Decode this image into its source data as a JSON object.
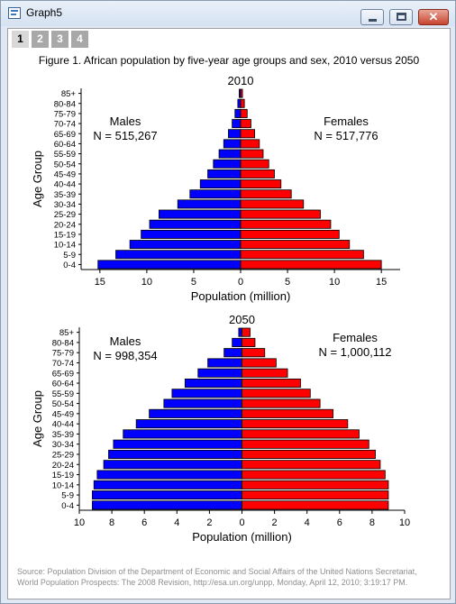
{
  "window": {
    "title": "Graph5"
  },
  "tabs": [
    "1",
    "2",
    "3",
    "4"
  ],
  "figure_title": "Figure 1. African population by five-year age groups and sex, 2010 versus 2050",
  "source_lines": [
    "Source: Population Division of the Department of Economic and Social Affairs of the United Nations Secretariat,",
    "World Population Prospects: The 2008 Revision, http://esa.un.org/unpp, Monday, April 12, 2010; 3:19:17 PM."
  ],
  "colors": {
    "males": "#0000ff",
    "females": "#ff0000"
  },
  "chart_data": [
    {
      "type": "bar",
      "orientation": "horizontal",
      "title": "2010",
      "xlabel": "Population (million)",
      "ylabel": "Age Group",
      "xlim": [
        -17,
        17
      ],
      "xticks": [
        -15,
        -10,
        -5,
        0,
        5,
        10,
        15
      ],
      "xtick_labels": [
        "15",
        "10",
        "5",
        "0",
        "5",
        "10",
        "15"
      ],
      "categories": [
        "0-4",
        "5-9",
        "10-14",
        "15-19",
        "20-24",
        "25-29",
        "30-34",
        "35-39",
        "40-44",
        "45-49",
        "50-54",
        "55-59",
        "60-64",
        "65-69",
        "70-74",
        "75-79",
        "80-84",
        "85+"
      ],
      "series": [
        {
          "name": "Males",
          "values": [
            15.2,
            13.3,
            11.8,
            10.6,
            9.7,
            8.7,
            6.7,
            5.4,
            4.3,
            3.5,
            2.9,
            2.3,
            1.8,
            1.3,
            0.9,
            0.6,
            0.3,
            0.15
          ]
        },
        {
          "name": "Females",
          "values": [
            15.0,
            13.1,
            11.6,
            10.5,
            9.6,
            8.5,
            6.7,
            5.4,
            4.3,
            3.6,
            3.0,
            2.4,
            2.0,
            1.5,
            1.1,
            0.7,
            0.4,
            0.2
          ]
        }
      ],
      "annotations": [
        {
          "label": "Males",
          "value": "N = 515,267",
          "side": "left"
        },
        {
          "label": "Females",
          "value": "N = 517,776",
          "side": "right"
        }
      ]
    },
    {
      "type": "bar",
      "orientation": "horizontal",
      "title": "2050",
      "xlabel": "Population (million)",
      "ylabel": "Age Group",
      "xlim": [
        -10,
        10
      ],
      "xticks": [
        -10,
        -8,
        -6,
        -4,
        -2,
        0,
        2,
        4,
        6,
        8,
        10
      ],
      "xtick_labels": [
        "10",
        "8",
        "6",
        "4",
        "2",
        "0",
        "2",
        "4",
        "6",
        "8",
        "10"
      ],
      "categories": [
        "0-4",
        "5-9",
        "10-14",
        "15-19",
        "20-24",
        "25-29",
        "30-34",
        "35-39",
        "40-44",
        "45-49",
        "50-54",
        "55-59",
        "60-64",
        "65-69",
        "70-74",
        "75-79",
        "80-84",
        "85+"
      ],
      "series": [
        {
          "name": "Males",
          "values": [
            9.2,
            9.2,
            9.1,
            8.9,
            8.5,
            8.2,
            7.9,
            7.3,
            6.5,
            5.7,
            4.8,
            4.3,
            3.5,
            2.7,
            2.1,
            1.1,
            0.6,
            0.2
          ]
        },
        {
          "name": "Females",
          "values": [
            9.0,
            9.0,
            9.0,
            8.8,
            8.5,
            8.2,
            7.8,
            7.2,
            6.5,
            5.6,
            4.8,
            4.2,
            3.6,
            2.8,
            2.1,
            1.4,
            0.8,
            0.5
          ]
        }
      ],
      "annotations": [
        {
          "label": "Males",
          "value": "N = 998,354",
          "side": "left"
        },
        {
          "label": "Females",
          "value": "N = 1,000,112",
          "side": "right"
        }
      ]
    }
  ]
}
